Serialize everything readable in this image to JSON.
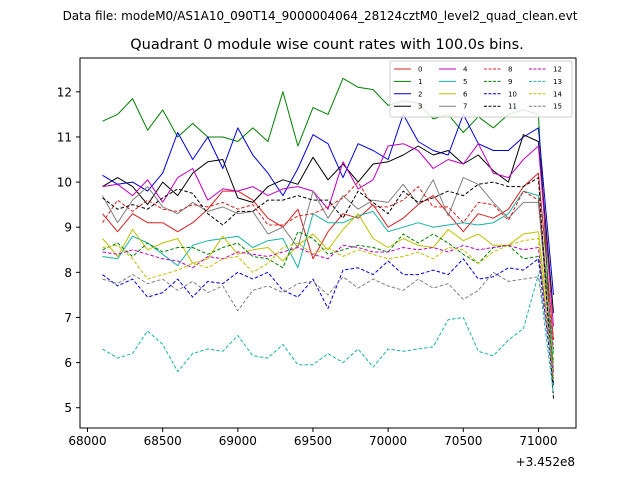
{
  "chart_data": {
    "type": "line",
    "suptitle": "Data file: modeM0/AS1A10_090T14_9000004064_28124cztM0_level2_quad_clean.evt",
    "title": "Quadrant 0 module wise count rates with 100.0s bins.",
    "xlabel": "",
    "ylabel": "",
    "offset_text": "+3.452e8",
    "xlim": [
      67950,
      71250
    ],
    "ylim": [
      4.55,
      12.75
    ],
    "xticks": [
      68000,
      68500,
      69000,
      69500,
      70000,
      70500,
      71000
    ],
    "yticks": [
      5,
      6,
      7,
      8,
      9,
      10,
      11,
      12
    ],
    "legend_position": "top-right",
    "x": [
      68100,
      68200,
      68300,
      68400,
      68500,
      68600,
      68700,
      68800,
      68900,
      69000,
      69100,
      69200,
      69300,
      69400,
      69500,
      69600,
      69700,
      69800,
      69900,
      70000,
      70100,
      70200,
      70300,
      70400,
      70500,
      70600,
      70700,
      70800,
      70900,
      71000,
      71100
    ],
    "series": [
      {
        "name": "0",
        "color": "#d62020",
        "dash": "solid",
        "values": [
          9.3,
          8.9,
          9.3,
          9.1,
          9.1,
          8.9,
          9.1,
          9.4,
          9.8,
          9.8,
          9.6,
          9.2,
          9.0,
          9.4,
          8.3,
          8.9,
          9.3,
          9.2,
          9.5,
          9.0,
          9.2,
          9.5,
          9.7,
          9.3,
          8.9,
          9.3,
          9.2,
          9.4,
          9.9,
          10.2,
          6.5
        ]
      },
      {
        "name": "1",
        "color": "#008000",
        "dash": "solid",
        "values": [
          11.35,
          11.5,
          11.85,
          11.15,
          11.6,
          11.0,
          11.3,
          11.0,
          11.0,
          10.9,
          11.2,
          10.9,
          12.0,
          10.8,
          11.65,
          11.5,
          12.3,
          12.1,
          12.05,
          11.7,
          11.8,
          11.75,
          11.4,
          11.5,
          11.1,
          11.45,
          11.2,
          11.5,
          11.6,
          11.5,
          5.5
        ]
      },
      {
        "name": "2",
        "color": "#0000dd",
        "dash": "solid",
        "values": [
          10.15,
          9.95,
          10.0,
          9.8,
          10.2,
          11.1,
          10.5,
          11.0,
          10.3,
          11.2,
          10.6,
          10.2,
          9.7,
          10.3,
          11.05,
          10.85,
          10.1,
          10.85,
          10.7,
          10.5,
          11.5,
          10.9,
          10.7,
          10.6,
          11.5,
          10.85,
          10.7,
          10.7,
          11.0,
          11.2,
          7.5
        ]
      },
      {
        "name": "3",
        "color": "#000000",
        "dash": "solid",
        "values": [
          9.9,
          10.1,
          9.9,
          9.5,
          10.0,
          9.7,
          10.2,
          10.45,
          10.5,
          9.65,
          9.55,
          9.9,
          10.05,
          9.95,
          10.55,
          10.05,
          10.4,
          10.0,
          10.4,
          10.45,
          10.6,
          10.8,
          10.6,
          10.7,
          10.4,
          10.6,
          10.25,
          10.0,
          11.05,
          10.9,
          7.1
        ]
      },
      {
        "name": "4",
        "color": "#c000c0",
        "dash": "solid",
        "values": [
          9.9,
          9.95,
          9.7,
          10.05,
          9.55,
          10.1,
          10.3,
          9.6,
          9.85,
          9.8,
          9.9,
          9.7,
          9.85,
          9.9,
          9.8,
          9.4,
          10.45,
          9.85,
          10.05,
          10.8,
          10.85,
          10.7,
          10.3,
          10.5,
          10.4,
          10.85,
          10.2,
          10.1,
          10.5,
          10.8,
          6.8
        ]
      },
      {
        "name": "5",
        "color": "#17b3a6",
        "dash": "solid",
        "values": [
          8.35,
          8.3,
          8.8,
          8.65,
          8.4,
          8.15,
          8.6,
          8.7,
          8.75,
          8.8,
          8.55,
          8.7,
          8.75,
          8.1,
          9.3,
          9.1,
          9.1,
          9.25,
          9.35,
          8.9,
          9.0,
          9.1,
          9.0,
          9.05,
          9.1,
          9.05,
          9.1,
          9.3,
          9.8,
          9.7,
          6.2
        ]
      },
      {
        "name": "6",
        "color": "#c0c000",
        "dash": "solid",
        "values": [
          8.75,
          8.35,
          8.95,
          8.5,
          8.65,
          8.75,
          8.2,
          8.3,
          8.8,
          8.4,
          8.5,
          8.55,
          8.25,
          8.6,
          8.85,
          8.5,
          8.95,
          9.3,
          8.75,
          8.55,
          8.75,
          8.6,
          8.55,
          8.95,
          8.7,
          8.85,
          8.6,
          8.6,
          8.85,
          8.9,
          6.0
        ]
      },
      {
        "name": "7",
        "color": "#808080",
        "dash": "solid",
        "values": [
          9.7,
          9.1,
          9.6,
          9.9,
          9.45,
          9.3,
          9.55,
          9.35,
          9.45,
          9.3,
          9.35,
          8.85,
          9.0,
          8.55,
          9.8,
          9.2,
          9.7,
          9.4,
          9.6,
          9.55,
          9.95,
          9.5,
          10.05,
          9.25,
          10.1,
          9.95,
          9.55,
          9.2,
          9.55,
          9.55,
          5.8
        ]
      },
      {
        "name": "8",
        "color": "#d62020",
        "dash": "dashed",
        "values": [
          9.1,
          9.6,
          9.35,
          9.6,
          9.4,
          9.35,
          9.5,
          9.45,
          9.55,
          9.4,
          9.5,
          9.05,
          9.05,
          9.25,
          9.3,
          9.45,
          9.65,
          10.0,
          9.45,
          9.45,
          9.6,
          9.9,
          9.45,
          9.45,
          9.1,
          9.55,
          9.5,
          9.15,
          9.8,
          9.6,
          6.3
        ]
      },
      {
        "name": "9",
        "color": "#008000",
        "dash": "dashed",
        "values": [
          8.5,
          8.65,
          8.35,
          8.65,
          8.45,
          8.55,
          8.55,
          8.4,
          8.55,
          8.65,
          8.35,
          8.3,
          8.1,
          8.9,
          8.75,
          8.4,
          8.5,
          8.6,
          8.55,
          8.45,
          8.85,
          8.65,
          8.85,
          8.65,
          8.4,
          8.2,
          8.55,
          8.6,
          8.3,
          8.35,
          6.0
        ]
      },
      {
        "name": "10",
        "color": "#0000dd",
        "dash": "dashed",
        "values": [
          7.95,
          7.7,
          7.85,
          7.45,
          7.55,
          7.85,
          7.45,
          7.8,
          7.75,
          8.0,
          7.85,
          8.0,
          7.6,
          7.45,
          7.85,
          7.2,
          8.05,
          8.1,
          7.95,
          8.25,
          7.95,
          7.95,
          8.05,
          7.95,
          8.3,
          7.85,
          7.9,
          8.1,
          8.05,
          8.3,
          5.5
        ]
      },
      {
        "name": "11",
        "color": "#000000",
        "dash": "dashed",
        "values": [
          9.65,
          9.4,
          9.5,
          9.4,
          9.65,
          9.85,
          9.75,
          9.3,
          9.05,
          9.35,
          9.35,
          9.6,
          9.6,
          9.7,
          9.6,
          9.6,
          9.2,
          9.8,
          9.55,
          9.3,
          9.8,
          9.55,
          9.65,
          9.8,
          9.7,
          9.95,
          10.0,
          9.9,
          9.9,
          10.1,
          5.2
        ]
      },
      {
        "name": "12",
        "color": "#c000c0",
        "dash": "dashed",
        "values": [
          8.45,
          8.4,
          8.5,
          8.4,
          8.3,
          8.25,
          8.1,
          8.35,
          8.3,
          8.45,
          8.4,
          8.35,
          8.45,
          8.55,
          8.4,
          8.3,
          8.6,
          8.55,
          8.45,
          8.45,
          8.55,
          8.5,
          8.55,
          8.45,
          8.6,
          8.5,
          8.55,
          8.6,
          8.5,
          8.55,
          5.7
        ]
      },
      {
        "name": "13",
        "color": "#17b3a6",
        "dash": "dashed",
        "values": [
          6.3,
          6.1,
          6.2,
          6.7,
          6.4,
          5.8,
          6.2,
          6.3,
          6.25,
          6.6,
          6.15,
          6.1,
          6.4,
          5.95,
          5.95,
          6.2,
          6.0,
          6.3,
          5.9,
          6.3,
          6.25,
          6.3,
          6.35,
          6.95,
          7.0,
          6.25,
          6.15,
          6.5,
          6.75,
          7.95,
          5.3
        ]
      },
      {
        "name": "14",
        "color": "#c0c000",
        "dash": "dashed",
        "values": [
          8.55,
          8.6,
          8.3,
          7.85,
          7.95,
          8.05,
          8.2,
          8.1,
          8.3,
          8.35,
          8.0,
          8.2,
          8.55,
          8.65,
          8.4,
          8.55,
          8.35,
          8.5,
          8.4,
          8.3,
          8.35,
          8.45,
          8.3,
          8.55,
          8.5,
          8.2,
          8.45,
          8.6,
          8.7,
          8.75,
          5.6
        ]
      },
      {
        "name": "15",
        "color": "#808080",
        "dash": "dashed",
        "values": [
          7.85,
          7.75,
          7.95,
          7.75,
          7.85,
          7.6,
          7.8,
          7.55,
          7.7,
          7.15,
          7.6,
          7.7,
          7.55,
          7.75,
          7.8,
          7.5,
          7.9,
          7.65,
          7.85,
          7.7,
          7.6,
          7.85,
          7.65,
          7.75,
          7.4,
          7.6,
          8.0,
          7.8,
          7.85,
          7.9,
          5.9
        ]
      }
    ]
  }
}
